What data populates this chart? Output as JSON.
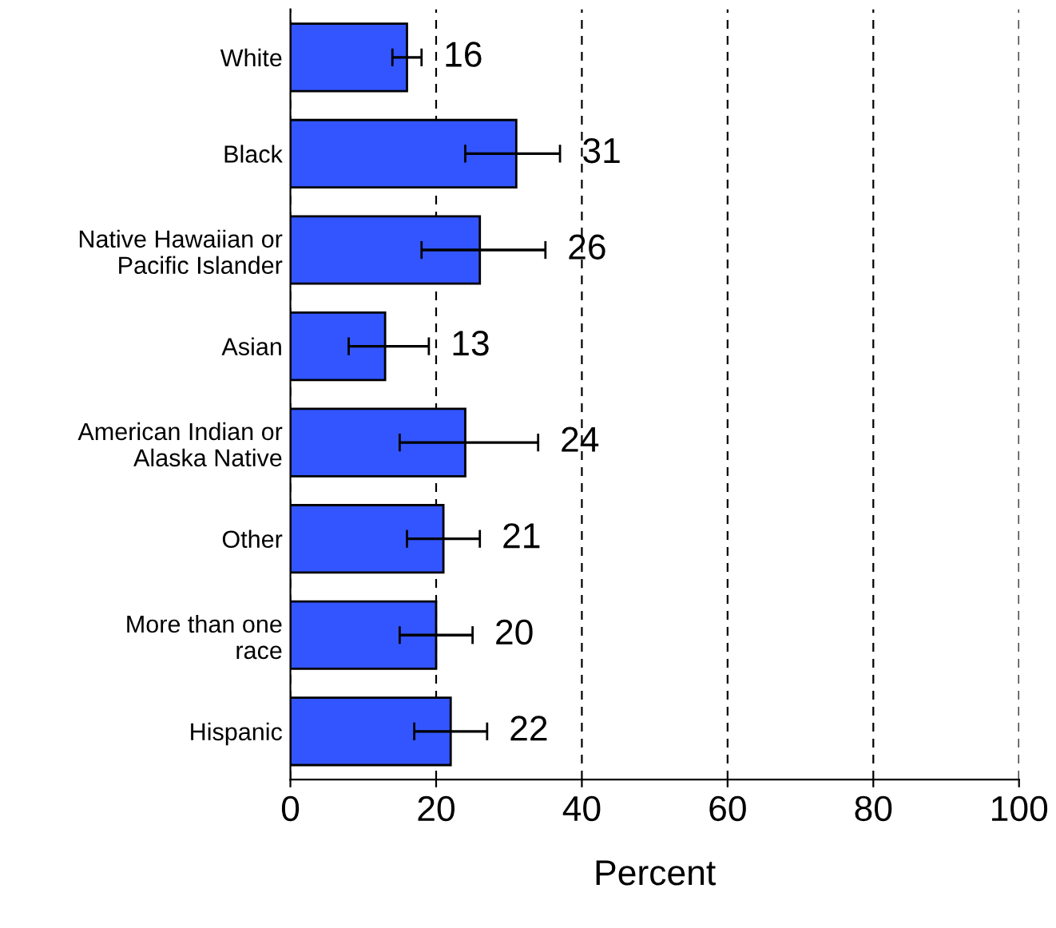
{
  "chart_data": {
    "type": "bar",
    "orientation": "horizontal",
    "xlabel": "Percent",
    "categories": [
      "White",
      "Black",
      "Native Hawaiian or\nPacific Islander",
      "Asian",
      "American Indian or\nAlaska Native",
      "Other",
      "More than one\nrace",
      "Hispanic"
    ],
    "values": [
      16,
      31,
      26,
      13,
      24,
      21,
      20,
      22
    ],
    "errors": [
      [
        14,
        18
      ],
      [
        24,
        37
      ],
      [
        18,
        35
      ],
      [
        8,
        19
      ],
      [
        15,
        34
      ],
      [
        16,
        26
      ],
      [
        15,
        25
      ],
      [
        17,
        27
      ]
    ],
    "color": "#3355ff",
    "data_labels": true,
    "xlim": [
      0,
      100
    ],
    "xticks": [
      0,
      20,
      40,
      60,
      80,
      100
    ],
    "grid": "x"
  }
}
